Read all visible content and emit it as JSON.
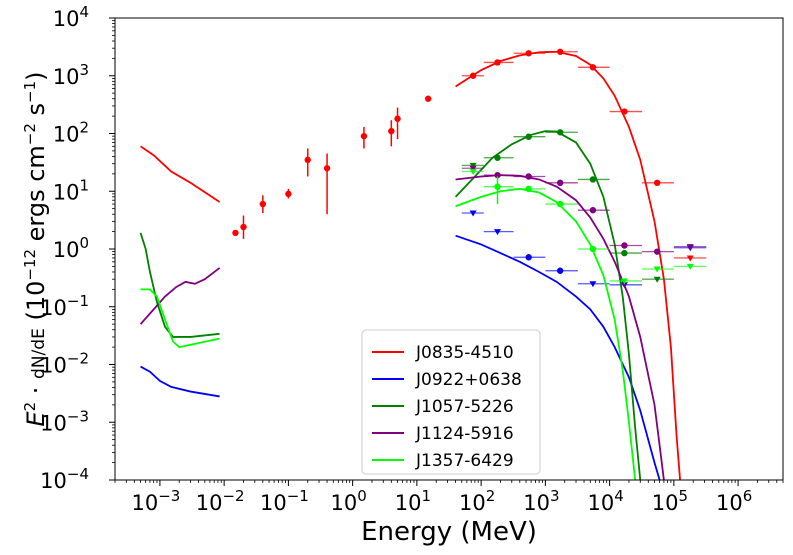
{
  "chart_data": {
    "type": "line",
    "xlabel": "Energy (MeV)",
    "ylabel": "E² · dN/dE (10⁻¹² ergs cm⁻² s⁻¹)",
    "xscale": "log",
    "yscale": "log",
    "xlim": [
      0.0002,
      5000000
    ],
    "ylim": [
      0.0001,
      10000
    ],
    "x_ticks": [
      {
        "value": 0.001,
        "label": "10",
        "exp": "−3"
      },
      {
        "value": 0.01,
        "label": "10",
        "exp": "−2"
      },
      {
        "value": 0.1,
        "label": "10",
        "exp": "−1"
      },
      {
        "value": 1,
        "label": "10",
        "exp": "0"
      },
      {
        "value": 10,
        "label": "10",
        "exp": "1"
      },
      {
        "value": 100,
        "label": "10",
        "exp": "2"
      },
      {
        "value": 1000,
        "label": "10",
        "exp": "3"
      },
      {
        "value": 10000,
        "label": "10",
        "exp": "4"
      },
      {
        "value": 100000,
        "label": "10",
        "exp": "5"
      },
      {
        "value": 1000000,
        "label": "10",
        "exp": "6"
      }
    ],
    "y_ticks": [
      {
        "value": 0.0001,
        "label": "10",
        "exp": "−4"
      },
      {
        "value": 0.001,
        "label": "10",
        "exp": "−3"
      },
      {
        "value": 0.01,
        "label": "10",
        "exp": "−2"
      },
      {
        "value": 0.1,
        "label": "10",
        "exp": "−1"
      },
      {
        "value": 1,
        "label": "10",
        "exp": "0"
      },
      {
        "value": 10,
        "label": "10",
        "exp": "1"
      },
      {
        "value": 100,
        "label": "10",
        "exp": "2"
      },
      {
        "value": 1000,
        "label": "10",
        "exp": "3"
      },
      {
        "value": 10000,
        "label": "10",
        "exp": "4"
      }
    ],
    "legend_position": "bottom-center",
    "series": [
      {
        "name": "J0835-4510",
        "color": "#ff0000",
        "low_energy_curve": [
          [
            0.0005,
            60
          ],
          [
            0.0008,
            42
          ],
          [
            0.0015,
            22
          ],
          [
            0.003,
            14
          ],
          [
            0.0085,
            6.5
          ]
        ],
        "model_curve": [
          [
            40,
            650
          ],
          [
            100,
            1250
          ],
          [
            200,
            1800
          ],
          [
            400,
            2250
          ],
          [
            800,
            2550
          ],
          [
            1500,
            2600
          ],
          [
            3000,
            2200
          ],
          [
            5000,
            1550
          ],
          [
            8000,
            900
          ],
          [
            12000,
            450
          ],
          [
            20000,
            130
          ],
          [
            30000,
            35
          ],
          [
            50000,
            3
          ],
          [
            70000,
            0.3
          ],
          [
            90000,
            0.02
          ],
          [
            110000,
            0.0006
          ],
          [
            125000,
            0.0001
          ]
        ],
        "points": [
          {
            "x": 0.015,
            "y": 1.9,
            "ylo": 1.7,
            "yhi": 2.1
          },
          {
            "x": 0.02,
            "y": 2.4,
            "ylo": 1.5,
            "yhi": 3.8
          },
          {
            "x": 0.04,
            "y": 6,
            "ylo": 4.2,
            "yhi": 8.5
          },
          {
            "x": 0.1,
            "y": 9,
            "ylo": 7.5,
            "yhi": 11
          },
          {
            "x": 0.2,
            "y": 35,
            "ylo": 18,
            "yhi": 55
          },
          {
            "x": 0.4,
            "y": 25,
            "ylo": 4,
            "yhi": 45
          },
          {
            "x": 1.5,
            "y": 90,
            "ylo": 55,
            "yhi": 130
          },
          {
            "x": 4,
            "y": 110,
            "ylo": 60,
            "yhi": 170
          },
          {
            "x": 5,
            "y": 180,
            "ylo": 80,
            "yhi": 280
          },
          {
            "x": 15,
            "y": 400,
            "ylo": 370,
            "yhi": 430
          },
          {
            "x": 75,
            "y": 1000,
            "xlo": 50,
            "xhi": 110
          },
          {
            "x": 180,
            "y": 1700,
            "xlo": 110,
            "xhi": 320
          },
          {
            "x": 550,
            "y": 2450,
            "xlo": 320,
            "xhi": 1000
          },
          {
            "x": 1700,
            "y": 2600,
            "xlo": 1000,
            "xhi": 3200
          },
          {
            "x": 5500,
            "y": 1400,
            "xlo": 3200,
            "xhi": 10000
          },
          {
            "x": 17000,
            "y": 240,
            "xlo": 10000,
            "xhi": 32000
          },
          {
            "x": 55000,
            "y": 14,
            "xlo": 32000,
            "xhi": 100000
          }
        ],
        "upper_limits": [
          {
            "x": 180000,
            "y": 0.7,
            "xlo": 100000,
            "xhi": 320000
          }
        ]
      },
      {
        "name": "J0922+0638",
        "color": "#0000ff",
        "low_energy_curve": [
          [
            0.0005,
            0.0092
          ],
          [
            0.0007,
            0.0075
          ],
          [
            0.001,
            0.0052
          ],
          [
            0.0015,
            0.0041
          ],
          [
            0.003,
            0.0034
          ],
          [
            0.0085,
            0.0028
          ]
        ],
        "model_curve": [
          [
            40,
            1.7
          ],
          [
            100,
            1.2
          ],
          [
            200,
            0.85
          ],
          [
            400,
            0.6
          ],
          [
            800,
            0.4
          ],
          [
            1500,
            0.27
          ],
          [
            3000,
            0.15
          ],
          [
            5000,
            0.09
          ],
          [
            8000,
            0.045
          ],
          [
            12000,
            0.02
          ],
          [
            20000,
            0.006
          ],
          [
            30000,
            0.0016
          ],
          [
            50000,
            0.0002
          ],
          [
            60000,
            0.0001
          ]
        ],
        "points": [
          {
            "x": 550,
            "y": 0.72,
            "xlo": 320,
            "xhi": 1000
          },
          {
            "x": 1700,
            "y": 0.42,
            "xlo": 1000,
            "xhi": 3200
          }
        ],
        "upper_limits": [
          {
            "x": 75,
            "y": 4.2,
            "xlo": 50,
            "xhi": 110
          },
          {
            "x": 180,
            "y": 2.0,
            "xlo": 110,
            "xhi": 320
          },
          {
            "x": 5500,
            "y": 0.25,
            "xlo": 3200,
            "xhi": 10000
          },
          {
            "x": 17000,
            "y": 0.24,
            "xlo": 10000,
            "xhi": 32000
          },
          {
            "x": 180000,
            "y": 1.05,
            "xlo": 100000,
            "xhi": 320000
          }
        ]
      },
      {
        "name": "J1057-5226",
        "color": "#008000",
        "low_energy_curve": [
          [
            0.0005,
            1.9
          ],
          [
            0.0006,
            1.0
          ],
          [
            0.0007,
            0.4
          ],
          [
            0.0009,
            0.12
          ],
          [
            0.0012,
            0.045
          ],
          [
            0.0016,
            0.03
          ],
          [
            0.003,
            0.03
          ],
          [
            0.0085,
            0.034
          ]
        ],
        "model_curve": [
          [
            40,
            8
          ],
          [
            80,
            18
          ],
          [
            150,
            38
          ],
          [
            300,
            65
          ],
          [
            600,
            95
          ],
          [
            1000,
            110
          ],
          [
            1500,
            108
          ],
          [
            3000,
            70
          ],
          [
            5000,
            30
          ],
          [
            8000,
            8
          ],
          [
            12000,
            1.2
          ],
          [
            16000,
            0.15
          ],
          [
            20000,
            0.015
          ],
          [
            25000,
            0.0008
          ],
          [
            30000,
            0.0001
          ]
        ],
        "points": [
          {
            "x": 180,
            "y": 38,
            "xlo": 110,
            "xhi": 320
          },
          {
            "x": 550,
            "y": 88,
            "xlo": 320,
            "xhi": 1000
          },
          {
            "x": 1700,
            "y": 105,
            "xlo": 1000,
            "xhi": 3200
          },
          {
            "x": 5500,
            "y": 16,
            "xlo": 3200,
            "xhi": 10000
          },
          {
            "x": 17000,
            "y": 0.85,
            "xlo": 10000,
            "xhi": 32000
          }
        ],
        "upper_limits": [
          {
            "x": 75,
            "y": 28,
            "xlo": 50,
            "xhi": 110
          },
          {
            "x": 55000,
            "y": 0.3,
            "xlo": 32000,
            "xhi": 100000
          }
        ]
      },
      {
        "name": "J1124-5916",
        "color": "#800080",
        "low_energy_curve": [
          [
            0.0005,
            0.05
          ],
          [
            0.0008,
            0.09
          ],
          [
            0.0012,
            0.15
          ],
          [
            0.0018,
            0.22
          ],
          [
            0.0025,
            0.27
          ],
          [
            0.0035,
            0.25
          ],
          [
            0.005,
            0.3
          ],
          [
            0.0085,
            0.47
          ]
        ],
        "model_curve": [
          [
            40,
            16
          ],
          [
            100,
            18
          ],
          [
            200,
            19
          ],
          [
            400,
            18.5
          ],
          [
            800,
            16
          ],
          [
            1500,
            12
          ],
          [
            3000,
            7
          ],
          [
            5000,
            3.5
          ],
          [
            8000,
            1.5
          ],
          [
            12000,
            0.6
          ],
          [
            20000,
            0.15
          ],
          [
            30000,
            0.03
          ],
          [
            50000,
            0.002
          ],
          [
            60000,
            0.0004
          ],
          [
            70000,
            0.0001
          ]
        ],
        "points": [
          {
            "x": 180,
            "y": 19,
            "xlo": 110,
            "xhi": 320
          },
          {
            "x": 550,
            "y": 18,
            "xlo": 320,
            "xhi": 1000
          },
          {
            "x": 1700,
            "y": 14,
            "xlo": 1000,
            "xhi": 3200
          },
          {
            "x": 5500,
            "y": 4.7,
            "xlo": 3200,
            "xhi": 10000
          },
          {
            "x": 17000,
            "y": 1.15,
            "xlo": 10000,
            "xhi": 32000
          },
          {
            "x": 55000,
            "y": 0.9,
            "xlo": 32000,
            "xhi": 100000
          }
        ],
        "upper_limits": [
          {
            "x": 75,
            "y": 25,
            "xlo": 50,
            "xhi": 110
          },
          {
            "x": 180000,
            "y": 1.1,
            "xlo": 100000,
            "xhi": 320000
          }
        ]
      },
      {
        "name": "J1357-6429",
        "color": "#00ff00",
        "low_energy_curve": [
          [
            0.0005,
            0.2
          ],
          [
            0.0007,
            0.2
          ],
          [
            0.0009,
            0.15
          ],
          [
            0.0012,
            0.06
          ],
          [
            0.0016,
            0.025
          ],
          [
            0.002,
            0.02
          ],
          [
            0.003,
            0.022
          ],
          [
            0.0085,
            0.028
          ]
        ],
        "model_curve": [
          [
            40,
            5.5
          ],
          [
            100,
            8
          ],
          [
            200,
            10
          ],
          [
            400,
            11
          ],
          [
            800,
            9.5
          ],
          [
            1500,
            6.5
          ],
          [
            3000,
            3
          ],
          [
            5000,
            1.2
          ],
          [
            8000,
            0.35
          ],
          [
            12000,
            0.06
          ],
          [
            16000,
            0.008
          ],
          [
            20000,
            0.001
          ],
          [
            25000,
            0.0001
          ]
        ],
        "points": [
          {
            "x": 180,
            "y": 12,
            "ylo": 6,
            "yhi": 18,
            "xlo": 110,
            "xhi": 320
          },
          {
            "x": 550,
            "y": 11,
            "xlo": 320,
            "xhi": 1000
          },
          {
            "x": 1700,
            "y": 6,
            "xlo": 1000,
            "xhi": 3200
          },
          {
            "x": 5500,
            "y": 1.0,
            "xlo": 3200,
            "xhi": 10000
          }
        ],
        "upper_limits": [
          {
            "x": 75,
            "y": 22,
            "xlo": 50,
            "xhi": 110
          },
          {
            "x": 17000,
            "y": 0.28,
            "xlo": 10000,
            "xhi": 32000
          },
          {
            "x": 55000,
            "y": 0.45,
            "xlo": 32000,
            "xhi": 100000
          },
          {
            "x": 180000,
            "y": 0.5,
            "xlo": 100000,
            "xhi": 320000
          }
        ]
      }
    ]
  }
}
